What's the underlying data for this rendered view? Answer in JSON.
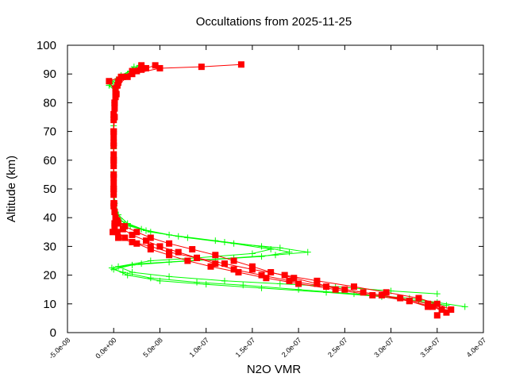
{
  "chart_data": {
    "type": "line",
    "title": "Occultations from 2025-11-25",
    "xlabel": "N2O VMR",
    "ylabel": "Altitude (km)",
    "xlim": [
      -5e-08,
      4e-07
    ],
    "ylim": [
      0,
      100
    ],
    "xticks": [
      "-5.0e-08",
      "0.0e+00",
      "5.0e-08",
      "1.0e-07",
      "1.5e-07",
      "2.0e-07",
      "2.5e-07",
      "3.0e-07",
      "3.5e-07",
      "4.0e-07"
    ],
    "xtick_values": [
      -5e-08,
      0,
      5e-08,
      1e-07,
      1.5e-07,
      2e-07,
      2.5e-07,
      3e-07,
      3.5e-07,
      4e-07
    ],
    "yticks": [
      "0",
      "10",
      "20",
      "30",
      "40",
      "50",
      "60",
      "70",
      "80",
      "90",
      "100"
    ],
    "ytick_values": [
      0,
      10,
      20,
      30,
      40,
      50,
      60,
      70,
      80,
      90,
      100
    ],
    "grid": false,
    "legend": "none",
    "colors": {
      "red_series": "#ff0000",
      "green_series": "#00ff00"
    },
    "series": [
      {
        "color": "#00ff00",
        "marker": "plus",
        "points": [
          [
            3.8e-07,
            9
          ],
          [
            3.5e-07,
            10.5
          ],
          [
            3.2e-07,
            12
          ],
          [
            2.6e-07,
            13.5
          ],
          [
            2e-07,
            15
          ],
          [
            1.4e-07,
            16.5
          ],
          [
            9e-08,
            17.5
          ],
          [
            4e-08,
            19
          ],
          [
            1e-08,
            21
          ],
          [
            0,
            22
          ],
          [
            2e-08,
            23.5
          ],
          [
            6e-08,
            24.5
          ],
          [
            1.1e-07,
            25.5
          ],
          [
            1.6e-07,
            26.5
          ],
          [
            1.9e-07,
            28
          ],
          [
            1.6e-07,
            30
          ],
          [
            1.1e-07,
            32
          ],
          [
            6e-08,
            34
          ],
          [
            3e-08,
            36
          ],
          [
            1.2e-08,
            38
          ],
          [
            4e-09,
            40
          ],
          [
            1e-09,
            45
          ],
          [
            0,
            50
          ],
          [
            0,
            55
          ],
          [
            0,
            60
          ],
          [
            0,
            65
          ],
          [
            0,
            70
          ],
          [
            0,
            75
          ],
          [
            1e-09,
            80
          ],
          [
            2e-09,
            84
          ],
          [
            -5e-09,
            86
          ],
          [
            5e-09,
            88
          ],
          [
            1.5e-08,
            90
          ],
          [
            2.5e-08,
            92
          ]
        ]
      },
      {
        "color": "#00ff00",
        "marker": "plus",
        "points": [
          [
            3.6e-07,
            9.5
          ],
          [
            3.3e-07,
            11
          ],
          [
            2.9e-07,
            12.5
          ],
          [
            2.3e-07,
            14
          ],
          [
            1.6e-07,
            15.5
          ],
          [
            1e-07,
            16.8
          ],
          [
            5e-08,
            18
          ],
          [
            1.5e-08,
            20
          ],
          [
            -2e-09,
            22.5
          ],
          [
            3e-08,
            24
          ],
          [
            8e-08,
            25
          ],
          [
            1.3e-07,
            26
          ],
          [
            1.75e-07,
            27
          ],
          [
            2.1e-07,
            28
          ],
          [
            1.8e-07,
            29.5
          ],
          [
            1.3e-07,
            31
          ],
          [
            8e-08,
            33
          ],
          [
            4e-08,
            35
          ],
          [
            1.8e-08,
            37
          ],
          [
            6e-09,
            39.5
          ],
          [
            1e-09,
            43
          ],
          [
            0,
            50
          ],
          [
            0,
            58
          ],
          [
            0,
            66
          ],
          [
            0,
            74
          ],
          [
            1e-09,
            80
          ],
          [
            3e-09,
            85
          ],
          [
            -3e-09,
            87.5
          ],
          [
            8e-09,
            89.5
          ],
          [
            2e-08,
            91.5
          ],
          [
            2.8e-08,
            93
          ]
        ]
      },
      {
        "color": "#00ff00",
        "marker": "plus",
        "points": [
          [
            3.5e-07,
            13.5
          ],
          [
            3e-07,
            14.5
          ],
          [
            2.4e-07,
            16
          ],
          [
            1.8e-07,
            17
          ],
          [
            1.2e-07,
            18
          ],
          [
            6e-08,
            19.5
          ],
          [
            2e-08,
            21
          ],
          [
            5e-09,
            23
          ],
          [
            4e-08,
            25
          ],
          [
            9e-08,
            26
          ],
          [
            1.5e-07,
            27.5
          ],
          [
            1.7e-07,
            29
          ],
          [
            1.2e-07,
            31.5
          ],
          [
            7e-08,
            33.5
          ],
          [
            3.5e-08,
            35.5
          ],
          [
            1.5e-08,
            38
          ],
          [
            5e-09,
            41
          ],
          [
            0,
            48
          ],
          [
            0,
            56
          ],
          [
            0,
            64
          ],
          [
            0,
            72
          ],
          [
            1e-09,
            79
          ],
          [
            2e-09,
            84
          ],
          [
            -4e-09,
            86.5
          ],
          [
            6e-09,
            89
          ],
          [
            1.8e-08,
            91
          ],
          [
            2.2e-08,
            92.5
          ]
        ]
      },
      {
        "color": "#ff0000",
        "marker": "square",
        "points": [
          [
            3.5e-07,
            6
          ],
          [
            3.55e-07,
            8
          ],
          [
            3.4e-07,
            10
          ],
          [
            3.1e-07,
            12
          ],
          [
            2.7e-07,
            14
          ],
          [
            2.3e-07,
            16
          ],
          [
            1.9e-07,
            18
          ],
          [
            1.6e-07,
            20
          ],
          [
            1.3e-07,
            22
          ],
          [
            1.1e-07,
            24
          ],
          [
            9e-08,
            26
          ],
          [
            7e-08,
            28
          ],
          [
            5e-08,
            30
          ],
          [
            3.5e-08,
            32
          ],
          [
            2e-08,
            34
          ],
          [
            1e-08,
            36
          ],
          [
            5e-09,
            38
          ],
          [
            2e-09,
            40
          ],
          [
            5e-10,
            45
          ],
          [
            0,
            50
          ],
          [
            0,
            55
          ],
          [
            0,
            60
          ],
          [
            0,
            65
          ],
          [
            0,
            70
          ],
          [
            1e-09,
            75
          ],
          [
            1e-09,
            80
          ],
          [
            2e-09,
            84
          ],
          [
            5e-09,
            87
          ],
          [
            1e-08,
            89
          ],
          [
            2e-08,
            91
          ],
          [
            3e-08,
            93
          ]
        ]
      },
      {
        "color": "#ff0000",
        "marker": "square",
        "points": [
          [
            3.6e-07,
            7
          ],
          [
            3.45e-07,
            9
          ],
          [
            3.2e-07,
            11
          ],
          [
            2.9e-07,
            13
          ],
          [
            2.5e-07,
            15
          ],
          [
            2.2e-07,
            17
          ],
          [
            1.95e-07,
            19
          ],
          [
            1.7e-07,
            21
          ],
          [
            1.5e-07,
            23
          ],
          [
            1.3e-07,
            25
          ],
          [
            1.1e-07,
            27
          ],
          [
            8.5e-08,
            29
          ],
          [
            6e-08,
            31
          ],
          [
            4e-08,
            33
          ],
          [
            2.5e-08,
            35
          ],
          [
            1.2e-08,
            37
          ],
          [
            4e-09,
            39
          ],
          [
            1e-09,
            42
          ],
          [
            0,
            48
          ],
          [
            0,
            54
          ],
          [
            0,
            62
          ],
          [
            0,
            70
          ],
          [
            1e-09,
            78
          ],
          [
            3e-09,
            83
          ],
          [
            -5e-09,
            87.5
          ],
          [
            8e-09,
            89
          ],
          [
            2.5e-08,
            91
          ],
          [
            3.5e-08,
            92
          ]
        ]
      },
      {
        "color": "#ff0000",
        "marker": "square",
        "points": [
          [
            3.65e-07,
            8
          ],
          [
            3.5e-07,
            10
          ],
          [
            3.3e-07,
            12
          ],
          [
            2.95e-07,
            14
          ],
          [
            2.6e-07,
            16
          ],
          [
            2.2e-07,
            18
          ],
          [
            1.85e-07,
            20
          ],
          [
            1.5e-07,
            22
          ],
          [
            1.2e-07,
            24
          ],
          [
            9e-08,
            26
          ],
          [
            6e-08,
            28
          ],
          [
            4e-08,
            30
          ],
          [
            2e-08,
            31.5
          ],
          [
            5e-09,
            33
          ],
          [
            -1e-09,
            35
          ],
          [
            1e-09,
            37
          ],
          [
            3e-09,
            39
          ],
          [
            0,
            45
          ],
          [
            0,
            52
          ],
          [
            0,
            60
          ],
          [
            0,
            68
          ],
          [
            0,
            76
          ],
          [
            2e-09,
            82
          ],
          [
            4e-09,
            86
          ],
          [
            1.5e-08,
            89
          ],
          [
            3e-08,
            91.5
          ],
          [
            4.5e-08,
            93
          ]
        ]
      },
      {
        "color": "#ff0000",
        "marker": "square",
        "points": [
          [
            3.4e-07,
            9
          ],
          [
            3.2e-07,
            11
          ],
          [
            2.8e-07,
            13
          ],
          [
            2.4e-07,
            15
          ],
          [
            2e-07,
            17
          ],
          [
            1.65e-07,
            19
          ],
          [
            1.35e-07,
            21
          ],
          [
            1.05e-07,
            23
          ],
          [
            8e-08,
            25
          ],
          [
            6e-08,
            27
          ],
          [
            4e-08,
            29
          ],
          [
            2.5e-08,
            31
          ],
          [
            1.2e-08,
            33
          ],
          [
            4e-09,
            35
          ],
          [
            1e-09,
            38
          ],
          [
            0,
            44
          ],
          [
            0,
            50
          ],
          [
            0,
            58
          ],
          [
            0,
            66
          ],
          [
            0,
            74
          ],
          [
            1e-09,
            80
          ],
          [
            2e-09,
            85
          ],
          [
            6e-09,
            88
          ],
          [
            2e-08,
            90
          ],
          [
            5e-08,
            92
          ],
          [
            9.5e-08,
            92.5
          ],
          [
            1.38e-07,
            93.3
          ]
        ]
      }
    ]
  }
}
